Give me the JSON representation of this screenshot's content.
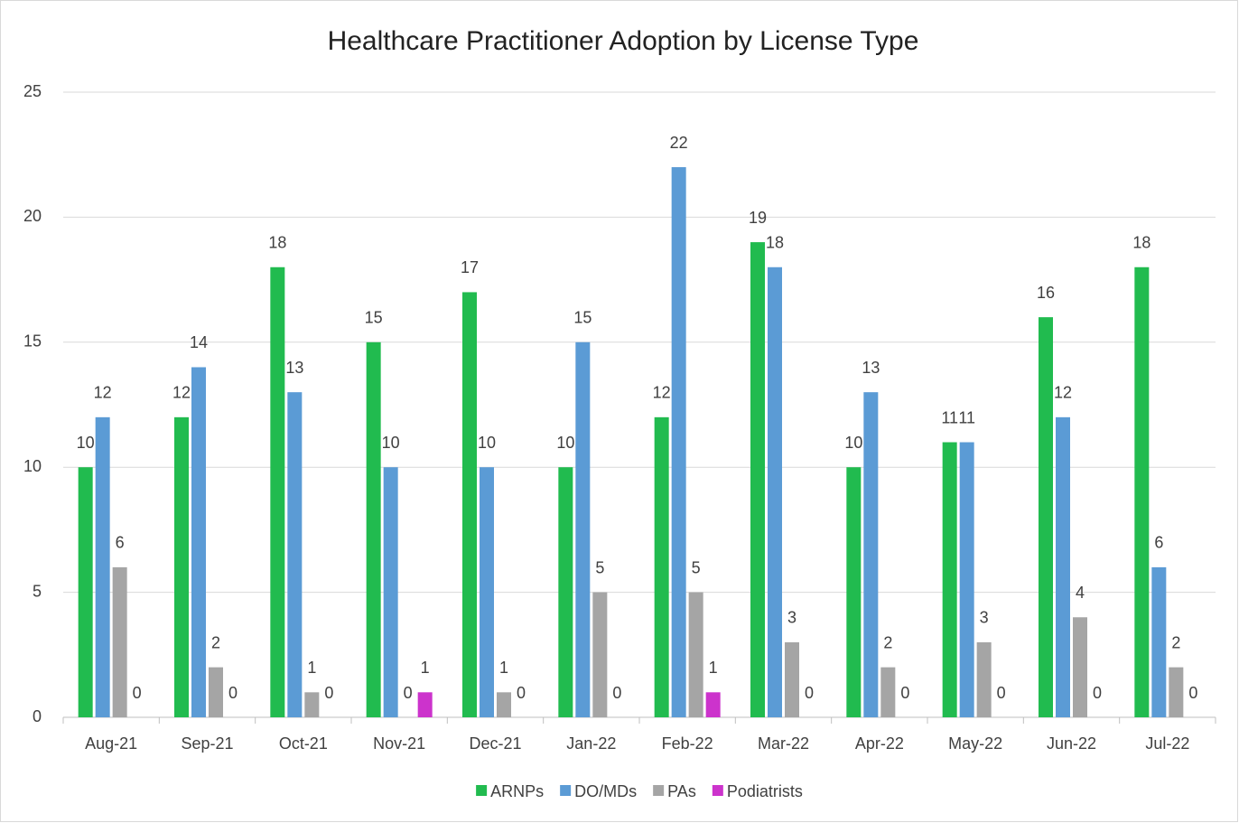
{
  "chart_data": {
    "type": "bar",
    "title": "Healthcare Practitioner Adoption by License Type",
    "categories": [
      "Aug-21",
      "Sep-21",
      "Oct-21",
      "Nov-21",
      "Dec-21",
      "Jan-22",
      "Feb-22",
      "Mar-22",
      "Apr-22",
      "May-22",
      "Jun-22",
      "Jul-22"
    ],
    "series": [
      {
        "name": "ARNPs",
        "color": "#21bb4f",
        "values": [
          10,
          12,
          18,
          15,
          17,
          10,
          12,
          19,
          10,
          11,
          16,
          18
        ]
      },
      {
        "name": "DO/MDs",
        "color": "#5b9bd5",
        "values": [
          12,
          14,
          13,
          10,
          10,
          15,
          22,
          18,
          13,
          11,
          12,
          6
        ]
      },
      {
        "name": "PAs",
        "color": "#a5a5a5",
        "values": [
          6,
          2,
          1,
          0,
          1,
          5,
          5,
          3,
          2,
          3,
          4,
          2
        ]
      },
      {
        "name": "Podiatrists",
        "color": "#cc33cc",
        "values": [
          0,
          0,
          0,
          1,
          0,
          0,
          1,
          0,
          0,
          0,
          0,
          0
        ]
      }
    ],
    "ylim": [
      0,
      25
    ],
    "yticks": [
      0,
      5,
      10,
      15,
      20,
      25
    ],
    "grid": true,
    "legend": "bottom"
  }
}
